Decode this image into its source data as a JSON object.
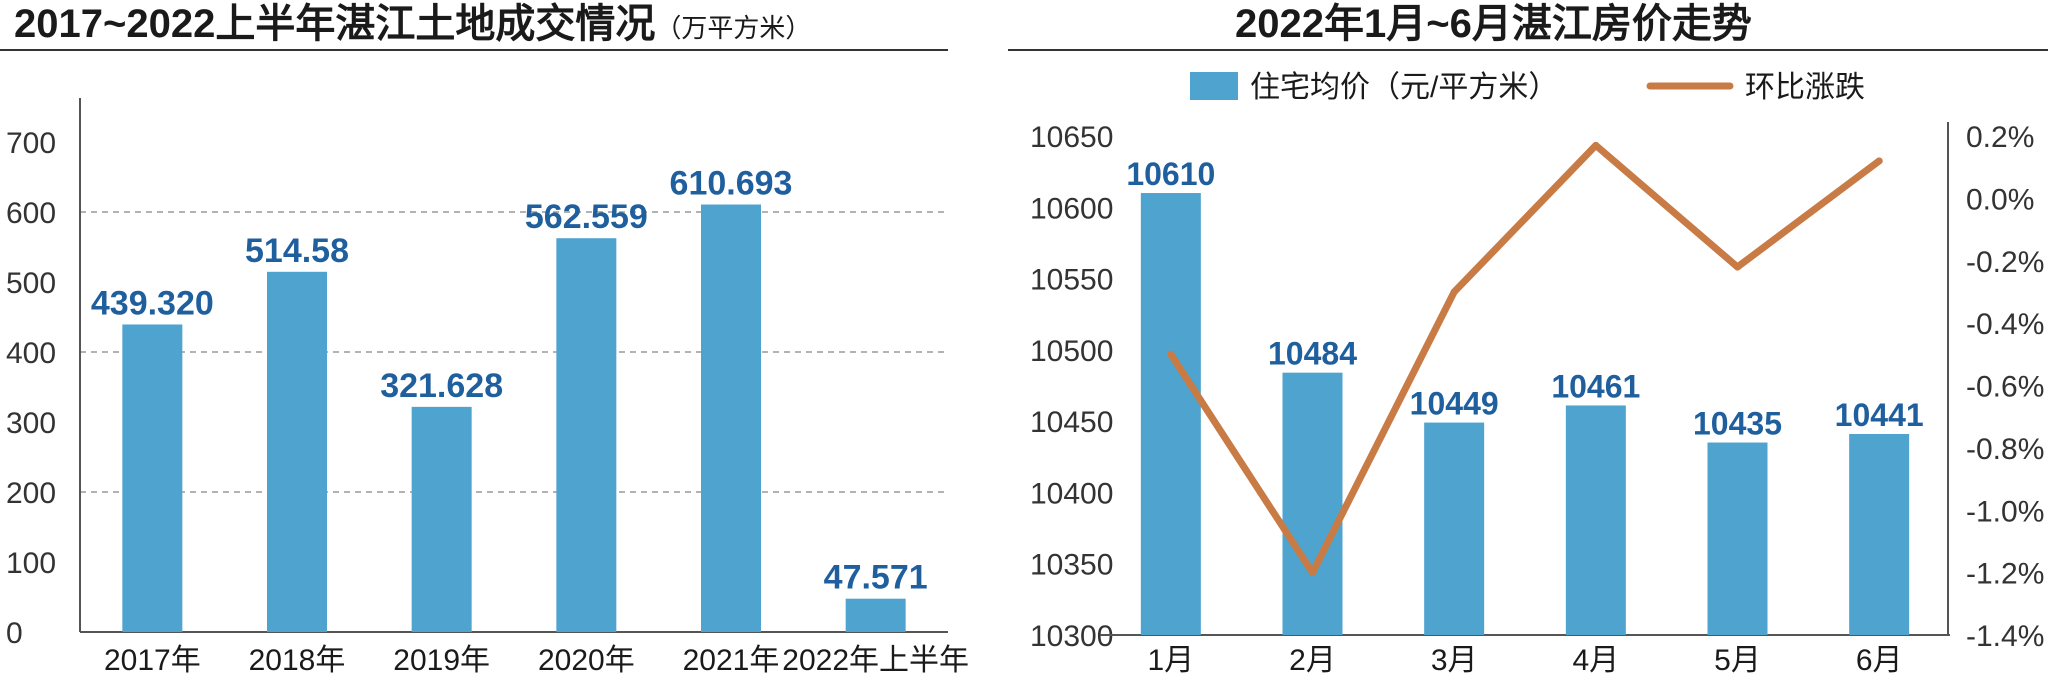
{
  "left_title": {
    "main": "2017~2022上半年湛江土地成交情况",
    "unit": "（万平方米）"
  },
  "right_title": "2022年1月~6月湛江房价走势",
  "chart_data": [
    {
      "type": "bar",
      "title": "2017~2022上半年湛江土地成交情况（万平方米）",
      "categories": [
        "2017年",
        "2018年",
        "2019年",
        "2020年",
        "2021年",
        "2022年上半年"
      ],
      "values": [
        439.32,
        514.58,
        321.628,
        562.559,
        610.693,
        47.571
      ],
      "value_labels": [
        "439.320",
        "514.58",
        "321.628",
        "562.559",
        "610.693",
        "47.571"
      ],
      "ylim": [
        0,
        700
      ],
      "yticks": [
        "0",
        "100",
        "200",
        "300",
        "400",
        "500",
        "600",
        "700"
      ],
      "grid": "dashed",
      "bar_color": "#4fa3cf",
      "label_color": "#1f5f9e"
    },
    {
      "type": "bar+line",
      "title": "2022年1月~6月湛江房价走势",
      "categories": [
        "1月",
        "2月",
        "3月",
        "4月",
        "5月",
        "6月"
      ],
      "legend": [
        "住宅均价（元/平方米）",
        "环比涨跌"
      ],
      "legend_position": "top",
      "series": [
        {
          "name": "住宅均价（元/平方米）",
          "type": "bar",
          "axis": "left",
          "values": [
            10610,
            10484,
            10449,
            10461,
            10435,
            10441
          ],
          "value_labels": [
            "10610",
            "10484",
            "10449",
            "10461",
            "10435",
            "10441"
          ],
          "color": "#4fa3cf"
        },
        {
          "name": "环比涨跌",
          "type": "line",
          "axis": "right",
          "values": [
            -0.5,
            -1.2,
            -0.3,
            0.17,
            -0.22,
            0.12
          ],
          "color": "#c87b45"
        }
      ],
      "y_left": {
        "lim": [
          10300,
          10650
        ],
        "ticks": [
          "10300",
          "10350",
          "10400",
          "10450",
          "10500",
          "10550",
          "10600",
          "10650"
        ]
      },
      "y_right": {
        "lim": [
          -1.4,
          0.2
        ],
        "ticks": [
          "0.2%",
          "0.0%",
          "-0.2%",
          "-0.4%",
          "-0.6%",
          "-0.8%",
          "-1.0%",
          "-1.2%",
          "-1.4%"
        ]
      },
      "label_color": "#1f5f9e"
    }
  ]
}
